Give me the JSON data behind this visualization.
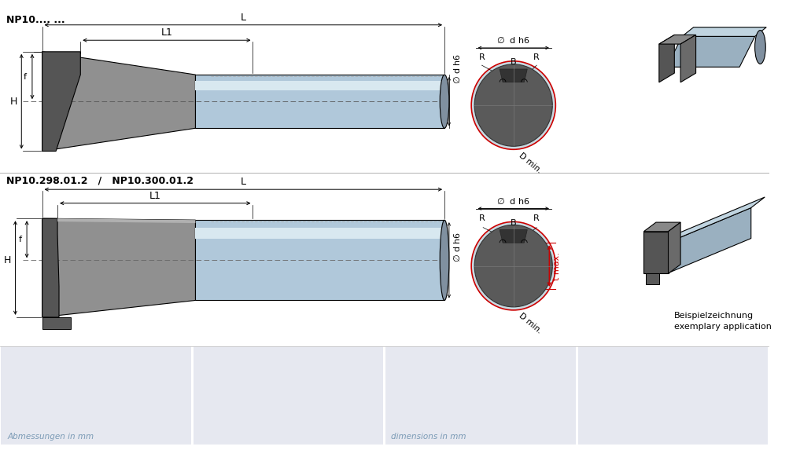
{
  "bg_color": "#ffffff",
  "table_bg": "#e6e8f0",
  "label_color_blue": "#7a9ab5",
  "red_color": "#cc0000",
  "dark_gray": "#555555",
  "med_gray": "#888888",
  "steel_blue": "#b0c8da",
  "steel_dark": "#8090a0",
  "steel_light": "#d8e8f0",
  "head_dark": "#6a6a6a",
  "head_face": "#7a7a7a",
  "title1": "NP10.... ...",
  "title2": "NP10.298.01.2   /   NP10.300.01.2",
  "label_abmessungen": "Abmessungen in mm",
  "label_dimensions": "dimensions in mm",
  "label_beispiel1": "Beispielzeichnung",
  "label_beispiel2": "exemplary application"
}
